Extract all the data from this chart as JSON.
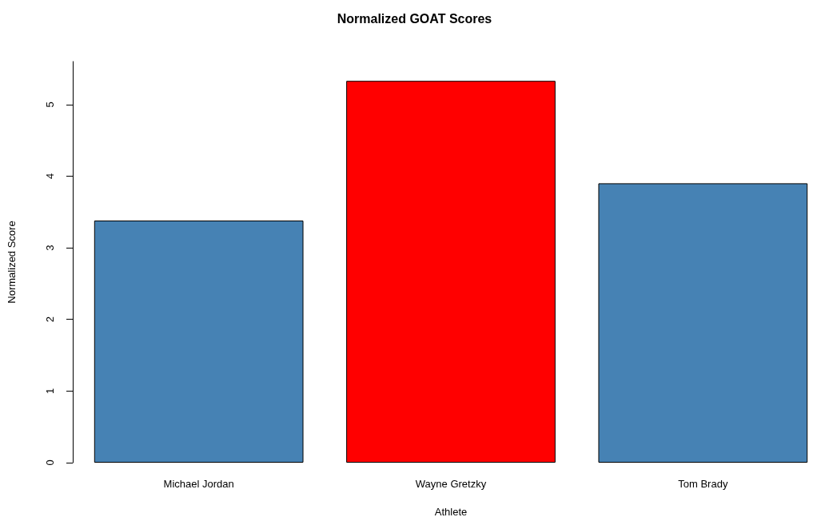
{
  "chart_data": {
    "type": "bar",
    "title": "Normalized GOAT Scores",
    "xlabel": "Athlete",
    "ylabel": "Normalized Score",
    "categories": [
      "Michael Jordan",
      "Wayne Gretzky",
      "Tom Brady"
    ],
    "values": [
      3.38,
      5.33,
      3.9
    ],
    "colors": [
      "#4682b4",
      "#ff0000",
      "#4682b4"
    ],
    "ylim": [
      0,
      5.6
    ],
    "yticks": [
      0,
      1,
      2,
      3,
      4,
      5
    ],
    "grid": false
  }
}
